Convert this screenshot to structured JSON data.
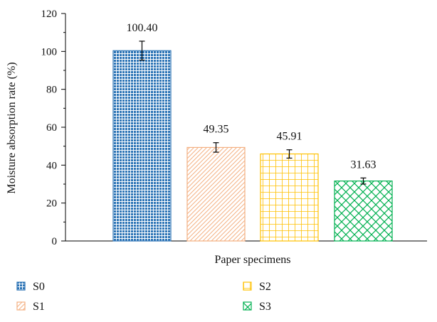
{
  "chart_data": {
    "type": "bar",
    "title": "",
    "xlabel": "Paper specimens",
    "ylabel": "Moisture absorption rate (%)",
    "ylim": [
      0,
      120
    ],
    "yticks": [
      0,
      20,
      40,
      60,
      80,
      100,
      120
    ],
    "grid": false,
    "legend_position": "bottom",
    "series": [
      {
        "name": "S0",
        "value": 100.4,
        "value_label": "100.40",
        "error": 5,
        "color": "#2e75b6",
        "pattern": "grid"
      },
      {
        "name": "S1",
        "value": 49.35,
        "value_label": "49.35",
        "error": 2.5,
        "color": "#f4b183",
        "pattern": "diagonal"
      },
      {
        "name": "S2",
        "value": 45.91,
        "value_label": "45.91",
        "error": 2.2,
        "color": "#ffc000",
        "pattern": "square-grid"
      },
      {
        "name": "S3",
        "value": 31.63,
        "value_label": "31.63",
        "error": 1.6,
        "color": "#00b050",
        "pattern": "crosshatch"
      }
    ]
  }
}
